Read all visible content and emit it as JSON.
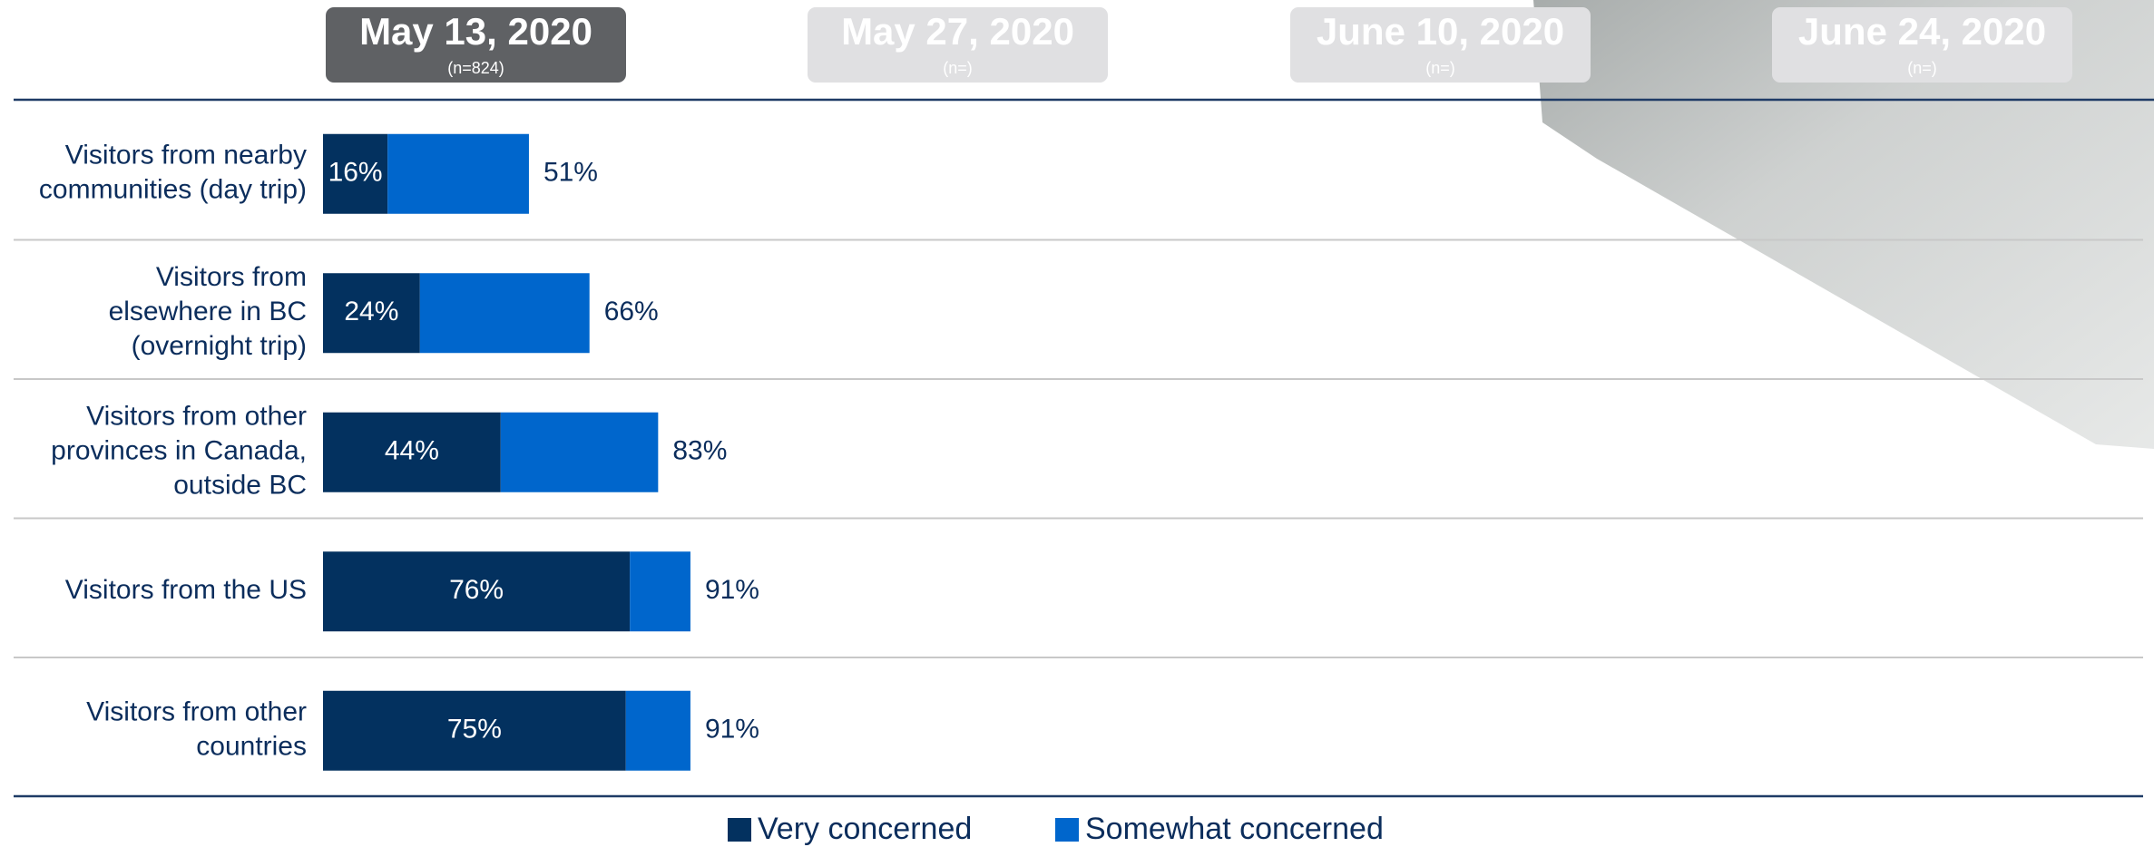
{
  "tabs": [
    {
      "date": "May 13, 2020",
      "n": "(n=824)",
      "active": true
    },
    {
      "date": "May 27, 2020",
      "n": "(n=)",
      "active": false
    },
    {
      "date": "June 10, 2020",
      "n": "(n=)",
      "active": false
    },
    {
      "date": "June 24, 2020",
      "n": "(n=)",
      "active": false
    }
  ],
  "chart_data": {
    "type": "bar",
    "stacked": true,
    "categories": [
      [
        "Visitors from nearby",
        "communities (day trip)"
      ],
      [
        "Visitors from",
        "elsewhere in BC",
        "(overnight trip)"
      ],
      [
        "Visitors from other",
        "provinces in Canada,",
        "outside BC"
      ],
      [
        "Visitors from the US"
      ],
      [
        "Visitors from other",
        "countries"
      ]
    ],
    "series": [
      {
        "name": "Very concerned",
        "color": "#03315f",
        "values": [
          16,
          24,
          44,
          76,
          75
        ],
        "value_labels": [
          "16%",
          "24%",
          "44%",
          "76%",
          "75%"
        ]
      },
      {
        "name": "Somewhat concerned",
        "color": "#0066cc",
        "values": [
          35,
          42,
          39,
          15,
          16
        ]
      }
    ],
    "totals": [
      51,
      66,
      83,
      91,
      91
    ],
    "total_labels": [
      "51%",
      "66%",
      "83%",
      "91%",
      "91%"
    ],
    "xlim": [
      0,
      100
    ]
  }
}
